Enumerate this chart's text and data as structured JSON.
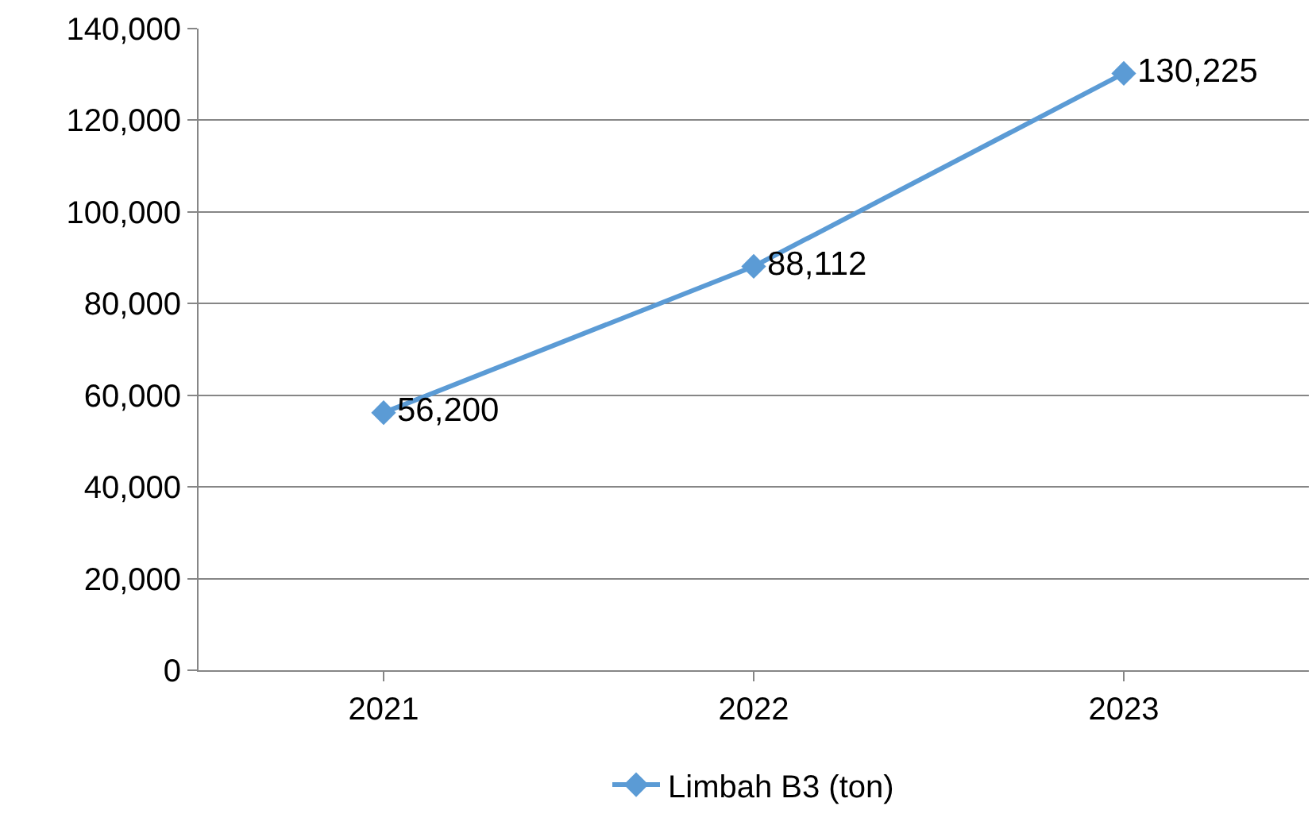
{
  "chart_data": {
    "type": "line",
    "categories": [
      "2021",
      "2022",
      "2023"
    ],
    "series": [
      {
        "name": "Limbah B3 (ton)",
        "color": "#5b9bd5",
        "values": [
          56200,
          88112,
          130225
        ],
        "value_labels": [
          "56,200",
          "88,112",
          "130,225"
        ]
      }
    ],
    "ylim": [
      0,
      140000
    ],
    "yticks": [
      {
        "value": 0,
        "label": "0"
      },
      {
        "value": 20000,
        "label": "20,000"
      },
      {
        "value": 40000,
        "label": "40,000"
      },
      {
        "value": 60000,
        "label": "60,000"
      },
      {
        "value": 80000,
        "label": "80,000"
      },
      {
        "value": 100000,
        "label": "100,000"
      },
      {
        "value": 120000,
        "label": "120,000"
      },
      {
        "value": 140000,
        "label": "140,000"
      }
    ],
    "grid": "y",
    "legend": "bottom",
    "marker": "diamond",
    "line_style": "solid"
  }
}
